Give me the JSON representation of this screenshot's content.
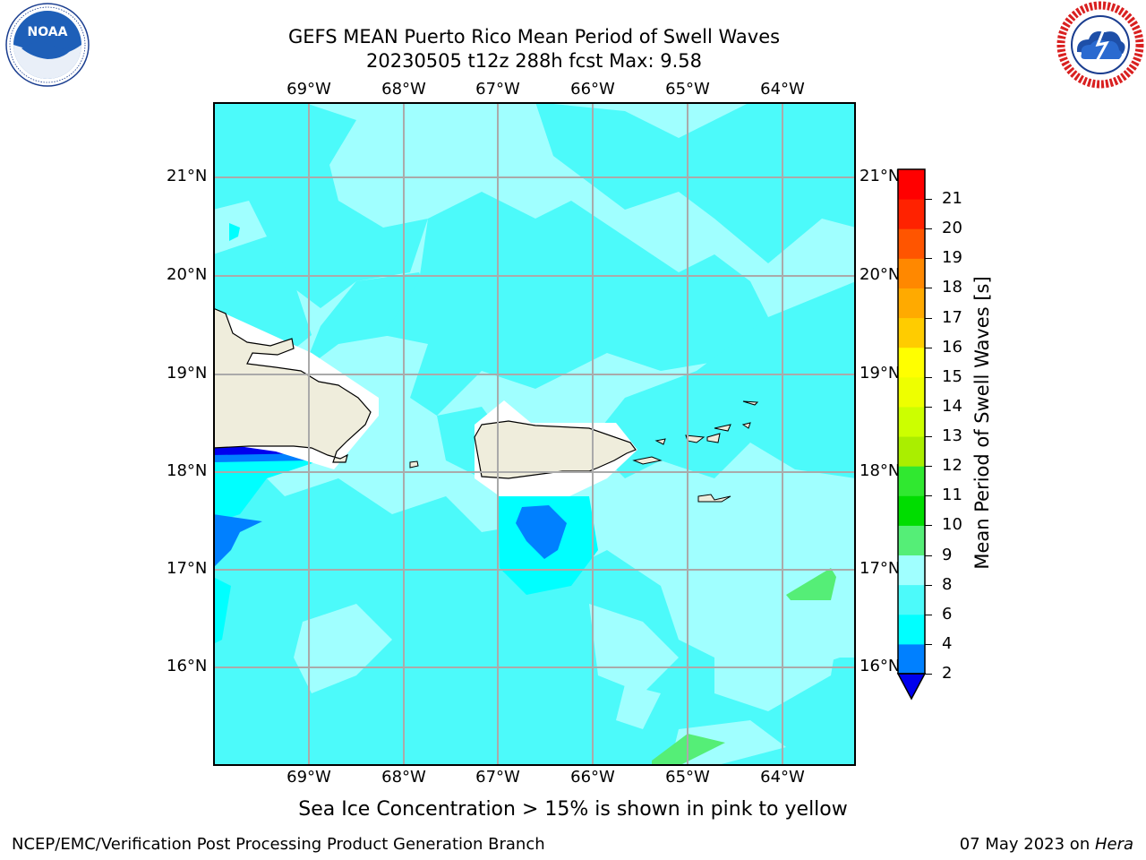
{
  "header": {
    "title_line1": "GEFS MEAN Puerto Rico Mean Period of Swell Waves",
    "title_line2": "20230505 t12z 288h fcst   Max: 9.58"
  },
  "logos": {
    "noaa": {
      "text": "NOAA",
      "ring_text": "NATIONAL OCEANIC AND ATMOSPHERIC ADMINISTRATION · U.S. DEPARTMENT OF COMMERCE"
    },
    "nws": {
      "ring_text": "NATIONAL WEATHER SERVICE"
    }
  },
  "map": {
    "lon_labels": [
      "69°W",
      "68°W",
      "67°W",
      "66°W",
      "65°W",
      "64°W"
    ],
    "lat_labels": [
      "21°N",
      "20°N",
      "19°N",
      "18°N",
      "17°N",
      "16°N"
    ],
    "colors": {
      "land": "#efeddc",
      "grid": "#aaaaaa"
    }
  },
  "colorbar": {
    "label": "Mean Period of Swell Waves [s]",
    "ticks": [
      "2",
      "4",
      "6",
      "8",
      "9",
      "10",
      "11",
      "12",
      "13",
      "14",
      "15",
      "16",
      "17",
      "18",
      "19",
      "20",
      "21"
    ],
    "colors": [
      "#0080ff",
      "#00ffff",
      "#4cfafa",
      "#a0ffff",
      "#55ee77",
      "#00dd00",
      "#30e830",
      "#aaee00",
      "#ccff00",
      "#eeff00",
      "#ffff00",
      "#ffcc00",
      "#ffaa00",
      "#ff8800",
      "#ff5500",
      "#ff2200",
      "#ff0000"
    ],
    "under_color": "#0000ee"
  },
  "footer": {
    "sea_ice_note": "Sea Ice Concentration > 15% is shown in pink to yellow",
    "credit": "NCEP/EMC/Verification Post Processing Product Generation Branch",
    "date_text": "07 May 2023 on ",
    "machine": "Hera"
  }
}
